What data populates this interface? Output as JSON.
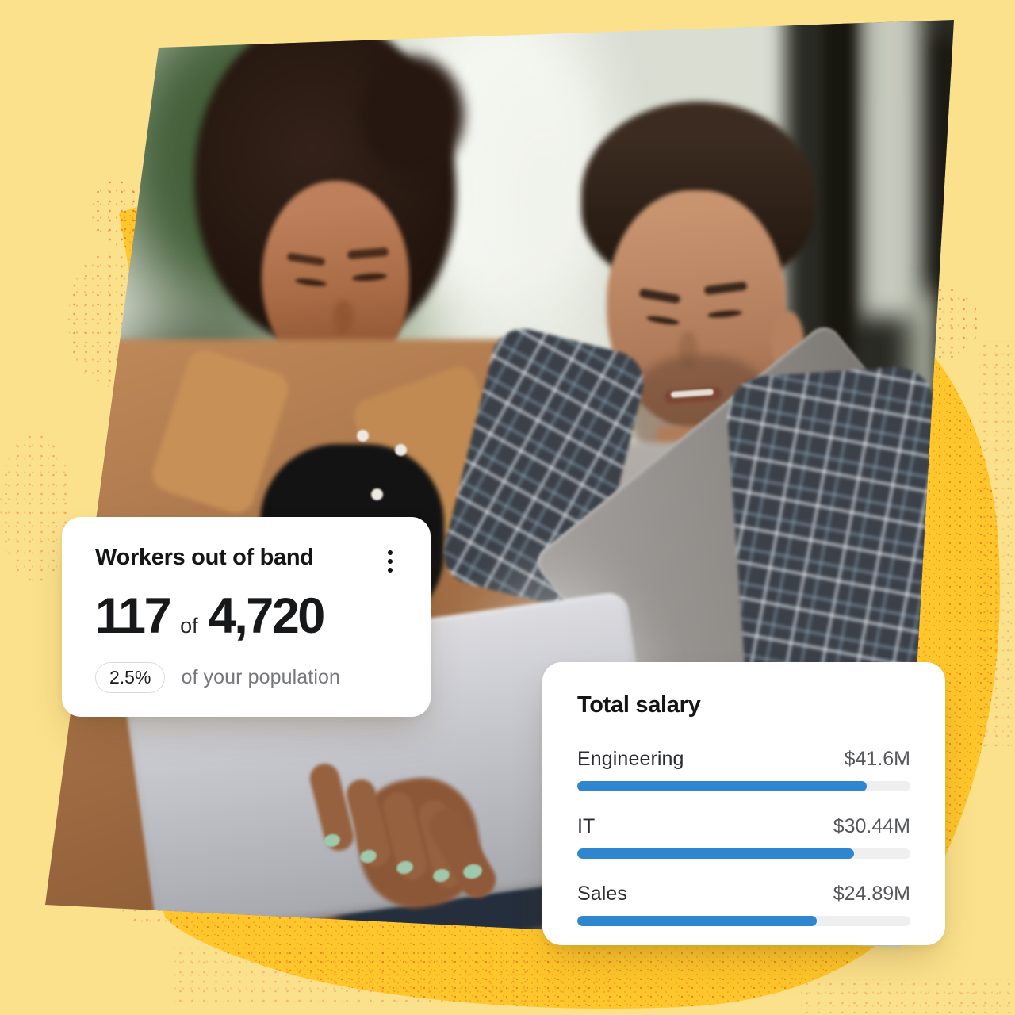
{
  "colors": {
    "background": "#FBE18B",
    "blob": "#FFC72B",
    "speckle": "#D83E18",
    "card_background": "#FFFFFF",
    "text_primary": "#141517",
    "text_secondary": "#56575B",
    "caption_gray": "#76777B",
    "bar_blue": "#2E86CF",
    "bar_track": "#EFEFF0"
  },
  "photo": {
    "alt": "Two coworkers standing by a window, smiling and looking at a laptop one of them is holding"
  },
  "workers_card": {
    "title": "Workers out of band",
    "menu_icon": "kebab-menu-icon",
    "stat": {
      "count": "117",
      "connector": "of",
      "total": "4,720"
    },
    "badge": "2.5%",
    "badge_caption": "of your population"
  },
  "salary_card": {
    "title": "Total salary"
  },
  "chart_data": {
    "type": "bar",
    "orientation": "horizontal",
    "title": "Total salary",
    "unit": "USD millions",
    "categories": [
      "Engineering",
      "IT",
      "Sales"
    ],
    "values": [
      41.6,
      30.44,
      24.89
    ],
    "value_labels": [
      "$41.6M",
      "$30.44M",
      "$24.89M"
    ],
    "bar_fill_pct": [
      87,
      83,
      72
    ],
    "grid": false,
    "legend": "none",
    "bar_color": "#2E86CF",
    "track_color": "#EFEFF0"
  }
}
